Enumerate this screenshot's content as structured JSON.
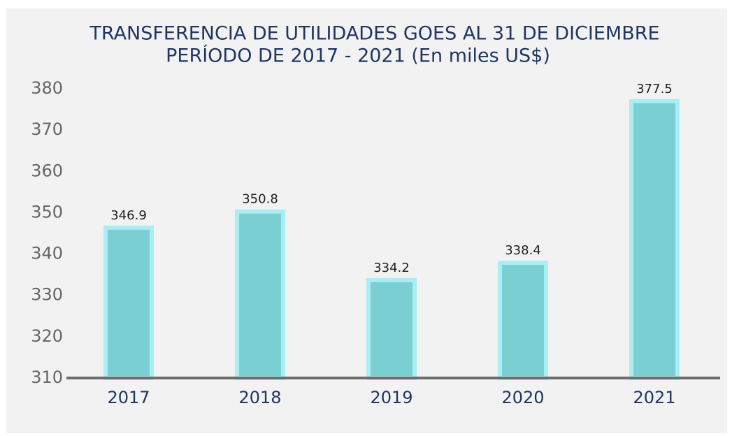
{
  "chart_data": {
    "type": "bar",
    "title": "TRANSFERENCIA DE UTILIDADES GOES AL 31 DE DICIEMBRE",
    "subtitle": "PERÍODO DE 2017 - 2021 (En miles US$)",
    "categories": [
      "2017",
      "2018",
      "2019",
      "2020",
      "2021"
    ],
    "values": [
      346.9,
      350.8,
      334.2,
      338.4,
      377.5
    ],
    "color": "#7acfd3",
    "edge_color": "#a8eef3",
    "ylim": [
      310,
      380
    ],
    "yticks": [
      310,
      320,
      330,
      340,
      350,
      360,
      370,
      380
    ],
    "grid": false
  }
}
